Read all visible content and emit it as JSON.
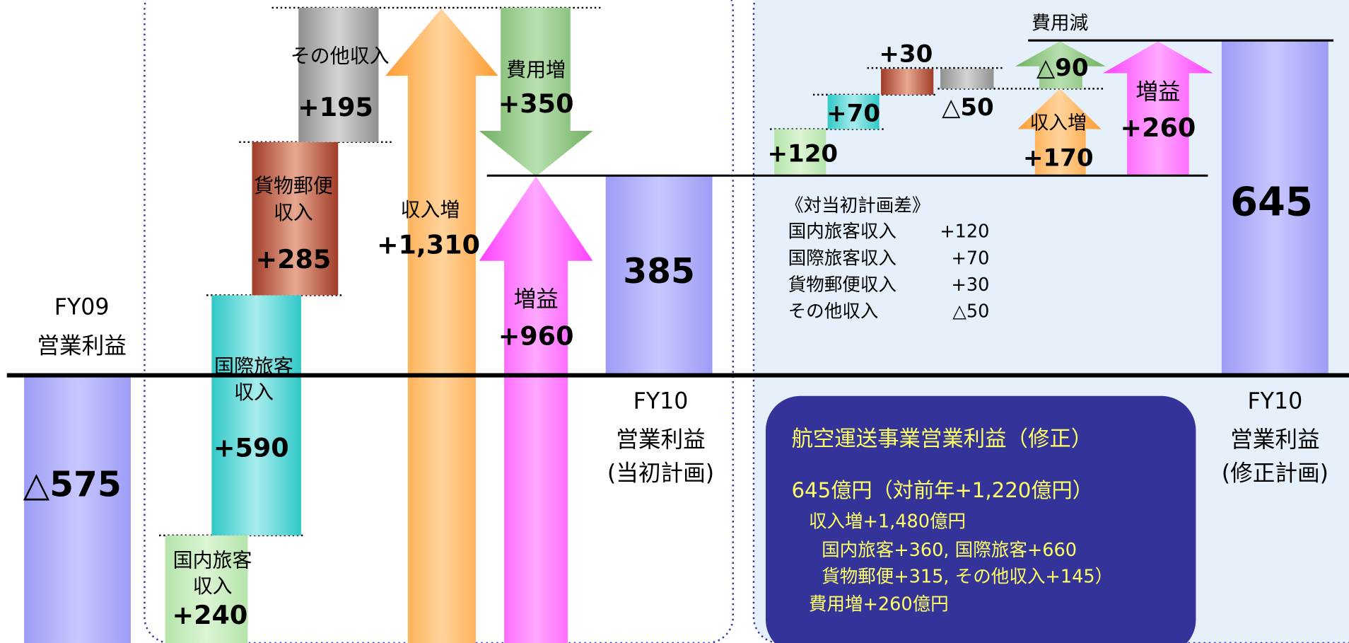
{
  "fy09": {
    "label": [
      "FY09",
      "営業利益"
    ],
    "value": "△575"
  },
  "left": {
    "domestic": {
      "label": [
        "国内旅客",
        "収入"
      ],
      "value": "+240"
    },
    "international": {
      "label": [
        "国際旅客",
        "収入"
      ],
      "value": "+590"
    },
    "cargo": {
      "label": [
        "貨物郵便",
        "収入"
      ],
      "value": "+285"
    },
    "other": {
      "label": "その他収入",
      "value": "+195"
    },
    "revenue_increase": {
      "label": "収入増",
      "value": "+1,310"
    },
    "cost_increase": {
      "label": "費用増",
      "value": "+350"
    },
    "profit_increase": {
      "label": "増益",
      "value": "+960"
    }
  },
  "fy10_plan": {
    "label": [
      "FY10",
      "営業利益",
      "(当初計画)"
    ],
    "value": "385"
  },
  "right": {
    "domestic": "+120",
    "international": "+70",
    "cargo": "+30",
    "other": "△50",
    "revenue_increase": {
      "label": "収入増",
      "value": "+170"
    },
    "cost_decrease": {
      "label": "費用減",
      "value": "△90"
    },
    "profit_increase": {
      "label": "増益",
      "value": "+260"
    },
    "notes": {
      "title": "《対当初計画差》",
      "rows": [
        [
          "国内旅客収入",
          "+120"
        ],
        [
          "国際旅客収入",
          "+70"
        ],
        [
          "貨物郵便収入",
          "+30"
        ],
        [
          "その他収入",
          "△50"
        ]
      ]
    }
  },
  "fy10_revised": {
    "label": [
      "FY10",
      "営業利益",
      "(修正計画)"
    ],
    "value": "645"
  },
  "summary": {
    "lines": [
      "航空運送事業営業利益（修正）",
      "645億円（対前年+1,220億円）",
      "収入増+1,480億円",
      "国内旅客+360, 国際旅客+660",
      "貨物郵便+315, その他収入+145）",
      "費用増+260億円"
    ]
  }
}
